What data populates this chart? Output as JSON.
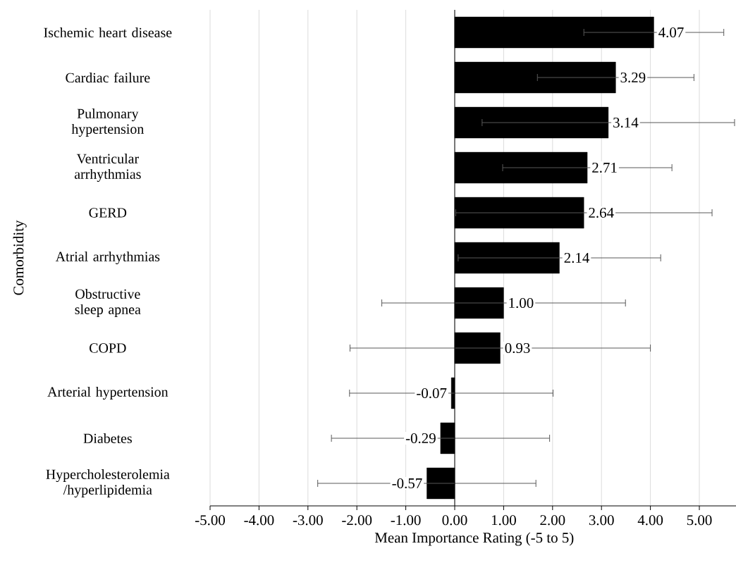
{
  "chart_data": {
    "type": "bar",
    "orientation": "horizontal",
    "categories": [
      "Ischemic heart disease",
      "Cardiac failure",
      "Pulmonary hypertension",
      "Ventricular arrhythmias",
      "GERD",
      "Atrial arrhythmias",
      "Obstructive sleep apnea",
      "COPD",
      "Arterial hypertension",
      "Diabetes",
      "Hypercholesterolemia /hyperlipidemia"
    ],
    "values": [
      4.07,
      3.29,
      3.14,
      2.71,
      2.64,
      2.14,
      1.0,
      0.93,
      -0.07,
      -0.29,
      -0.57
    ],
    "errors": [
      1.43,
      1.6,
      2.58,
      1.73,
      2.62,
      2.07,
      2.49,
      3.07,
      2.08,
      2.23,
      2.23
    ],
    "color": "#000000",
    "value_labels": [
      "4.07",
      "3.29",
      "3.14",
      "2.71",
      "2.64",
      "2.14",
      "1.00",
      "0.93",
      "-0.07",
      "-0.29",
      "-0.57"
    ],
    "xlabel": "Mean Importance Rating (-5 to 5)",
    "ylabel": "Comorbidity",
    "xlim": [
      -5,
      5.8
    ],
    "xticks": [
      {
        "value": -5,
        "label": "-5.00"
      },
      {
        "value": -4,
        "label": "-4.00"
      },
      {
        "value": -3,
        "label": "-3.00"
      },
      {
        "value": -2,
        "label": "-2.00"
      },
      {
        "value": -1,
        "label": "-1.00"
      },
      {
        "value": 0,
        "label": "0.00"
      },
      {
        "value": 1,
        "label": "1.00"
      },
      {
        "value": 2,
        "label": "2.00"
      },
      {
        "value": 3,
        "label": "3.00"
      },
      {
        "value": 4,
        "label": "4.00"
      },
      {
        "value": 5,
        "label": "5.00"
      }
    ],
    "grid": "x"
  }
}
